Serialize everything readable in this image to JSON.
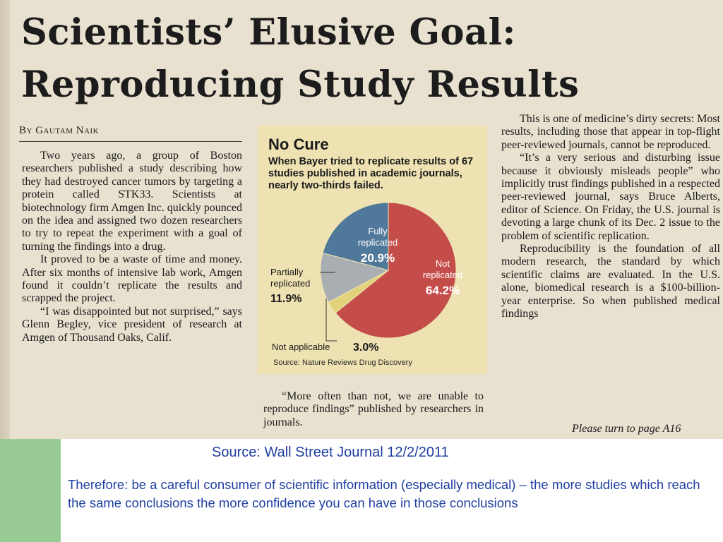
{
  "clipping": {
    "headline_line1": "Scientists’ Elusive Goal:",
    "headline_line2": "Reproducing Study Results",
    "byline": "By Gautam Naik",
    "column1": [
      "Two years ago, a group of Boston researchers published a study describing how they had destroyed cancer tumors by targeting a protein called STK33. Scientists at biotechnology firm Amgen Inc. quickly pounced on the idea and assigned two dozen researchers to try to repeat the experiment with a goal of turning the findings into a drug.",
      "It proved to be a waste of time and money. After six months of intensive lab work, Amgen found it couldn’t replicate the results and scrapped the project.",
      "“I was disappointed but not surprised,” says Glenn Begley, vice president of research at Amgen of Thousand Oaks, Calif."
    ],
    "column2_quote": "“More often than not, we are unable to reproduce findings” published by researchers in journals.",
    "column3": [
      "This is one of medicine’s dirty secrets: Most results, including those that appear in top-flight peer-reviewed journals, cannot be reproduced.",
      "“It’s a very serious and disturbing issue because it obviously misleads people” who implicitly trust findings published in a respected peer-reviewed journal, says Bruce Alberts, editor of Science. On Friday, the U.S. journal is devoting a large chunk of its Dec. 2 issue to the problem of scientific replication.",
      "Reproducibility is the foundation of all modern research, the standard by which scientific claims are evaluated. In the U.S. alone, biomedical research is a $100-billion-year enterprise. So when published medical findings"
    ],
    "continue_line": "Please turn to page A16"
  },
  "graphic": {
    "title": "No Cure",
    "dek": "When Bayer tried to replicate results of 67 studies published in academic journals, nearly two-thirds failed.",
    "source": "Source: Nature Reviews Drug Discovery"
  },
  "chart_data": {
    "type": "pie",
    "title": "No Cure",
    "slices": [
      {
        "label_line1": "Not",
        "label_line2": "replicated",
        "value": 64.2,
        "value_text": "64.2%",
        "color": "#c44d4a"
      },
      {
        "label_line1": "Not applicable",
        "label_line2": "",
        "value": 3.0,
        "value_text": "3.0%",
        "color": "#e2d27a"
      },
      {
        "label_line1": "Partially",
        "label_line2": "replicated",
        "value": 11.9,
        "value_text": "11.9%",
        "color": "#a9aeb2"
      },
      {
        "label_line1": "Fully",
        "label_line2": "replicated",
        "value": 20.9,
        "value_text": "20.9%",
        "color": "#4f789a"
      }
    ]
  },
  "slide": {
    "source_caption": "Source: Wall Street Journal 12/2/2011",
    "conclusion": "Therefore: be a careful consumer of scientific information (especially medical) – the more studies which reach the same conclusions the more confidence you can have in those conclusions",
    "accent_color": "#98cc94",
    "text_color": "#1f3fa0"
  }
}
